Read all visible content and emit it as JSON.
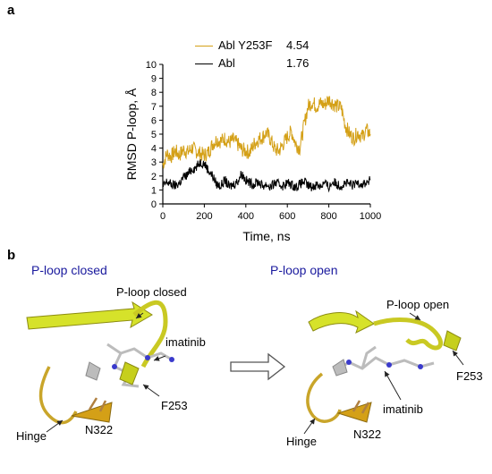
{
  "panel_a": {
    "label": "a",
    "legend": [
      {
        "name": "Abl Y253F",
        "value": "4.54",
        "color": "#d4a017"
      },
      {
        "name": "Abl",
        "value": "1.76",
        "color": "#000000"
      }
    ]
  },
  "chart_data": {
    "type": "line",
    "title": "",
    "xlabel": "Time, ns",
    "ylabel": "RMSD P-loop, Å",
    "xlim": [
      0,
      1000
    ],
    "ylim": [
      0,
      10
    ],
    "xticks": [
      0,
      200,
      400,
      600,
      800,
      1000
    ],
    "yticks": [
      0,
      1,
      2,
      3,
      4,
      5,
      6,
      7,
      8,
      9,
      10
    ],
    "grid": false,
    "legend_position": "top-left",
    "series": [
      {
        "name": "Abl Y253F",
        "color": "#d4a017",
        "x": [
          0,
          20,
          40,
          60,
          80,
          100,
          120,
          140,
          160,
          180,
          200,
          220,
          240,
          260,
          280,
          300,
          320,
          340,
          360,
          380,
          400,
          420,
          440,
          460,
          480,
          500,
          520,
          540,
          560,
          580,
          600,
          620,
          640,
          660,
          680,
          700,
          720,
          740,
          760,
          780,
          800,
          820,
          840,
          860,
          880,
          900,
          920,
          940,
          960,
          980,
          1000
        ],
        "y": [
          2.8,
          3.6,
          3.4,
          3.8,
          3.5,
          3.9,
          3.7,
          4.0,
          3.8,
          3.6,
          3.5,
          3.7,
          4.3,
          4.6,
          4.5,
          4.7,
          4.4,
          4.6,
          4.3,
          3.9,
          3.8,
          3.7,
          4.3,
          4.6,
          4.8,
          5.1,
          4.6,
          3.9,
          3.8,
          4.3,
          4.8,
          5.2,
          4.3,
          4.0,
          5.6,
          7.0,
          7.3,
          7.0,
          7.2,
          7.1,
          7.5,
          7.2,
          7.0,
          6.9,
          5.6,
          5.0,
          4.7,
          5.1,
          4.8,
          5.3,
          5.0
        ]
      },
      {
        "name": "Abl",
        "color": "#000000",
        "x": [
          0,
          20,
          40,
          60,
          80,
          100,
          120,
          140,
          160,
          180,
          200,
          220,
          240,
          260,
          280,
          300,
          320,
          340,
          360,
          380,
          400,
          420,
          440,
          460,
          480,
          500,
          520,
          540,
          560,
          580,
          600,
          620,
          640,
          660,
          680,
          700,
          720,
          740,
          760,
          780,
          800,
          820,
          840,
          860,
          880,
          900,
          920,
          940,
          960,
          980,
          1000
        ],
        "y": [
          1.2,
          1.6,
          1.4,
          1.3,
          1.5,
          1.9,
          2.1,
          2.5,
          2.6,
          3.0,
          2.9,
          2.4,
          2.0,
          1.4,
          1.3,
          1.7,
          1.2,
          1.4,
          1.6,
          2.2,
          1.7,
          1.5,
          1.4,
          1.6,
          1.3,
          1.4,
          1.2,
          1.5,
          1.4,
          1.3,
          1.5,
          1.4,
          1.2,
          1.4,
          1.6,
          1.3,
          1.2,
          1.4,
          1.3,
          1.5,
          1.2,
          1.6,
          1.4,
          1.3,
          1.5,
          1.4,
          1.3,
          1.6,
          1.4,
          1.5,
          1.7
        ]
      }
    ]
  },
  "panel_b": {
    "label": "b",
    "left_title": "P-loop closed",
    "right_title": "P-loop open",
    "left_labels": {
      "ploop": "P-loop closed",
      "ligand": "imatinib",
      "residue": "F253",
      "hinge": "Hinge",
      "n322": "N322"
    },
    "right_labels": {
      "ploop": "P-loop open",
      "residue": "F253",
      "ligand": "imatinib",
      "hinge": "Hinge",
      "n322": "N322"
    }
  }
}
